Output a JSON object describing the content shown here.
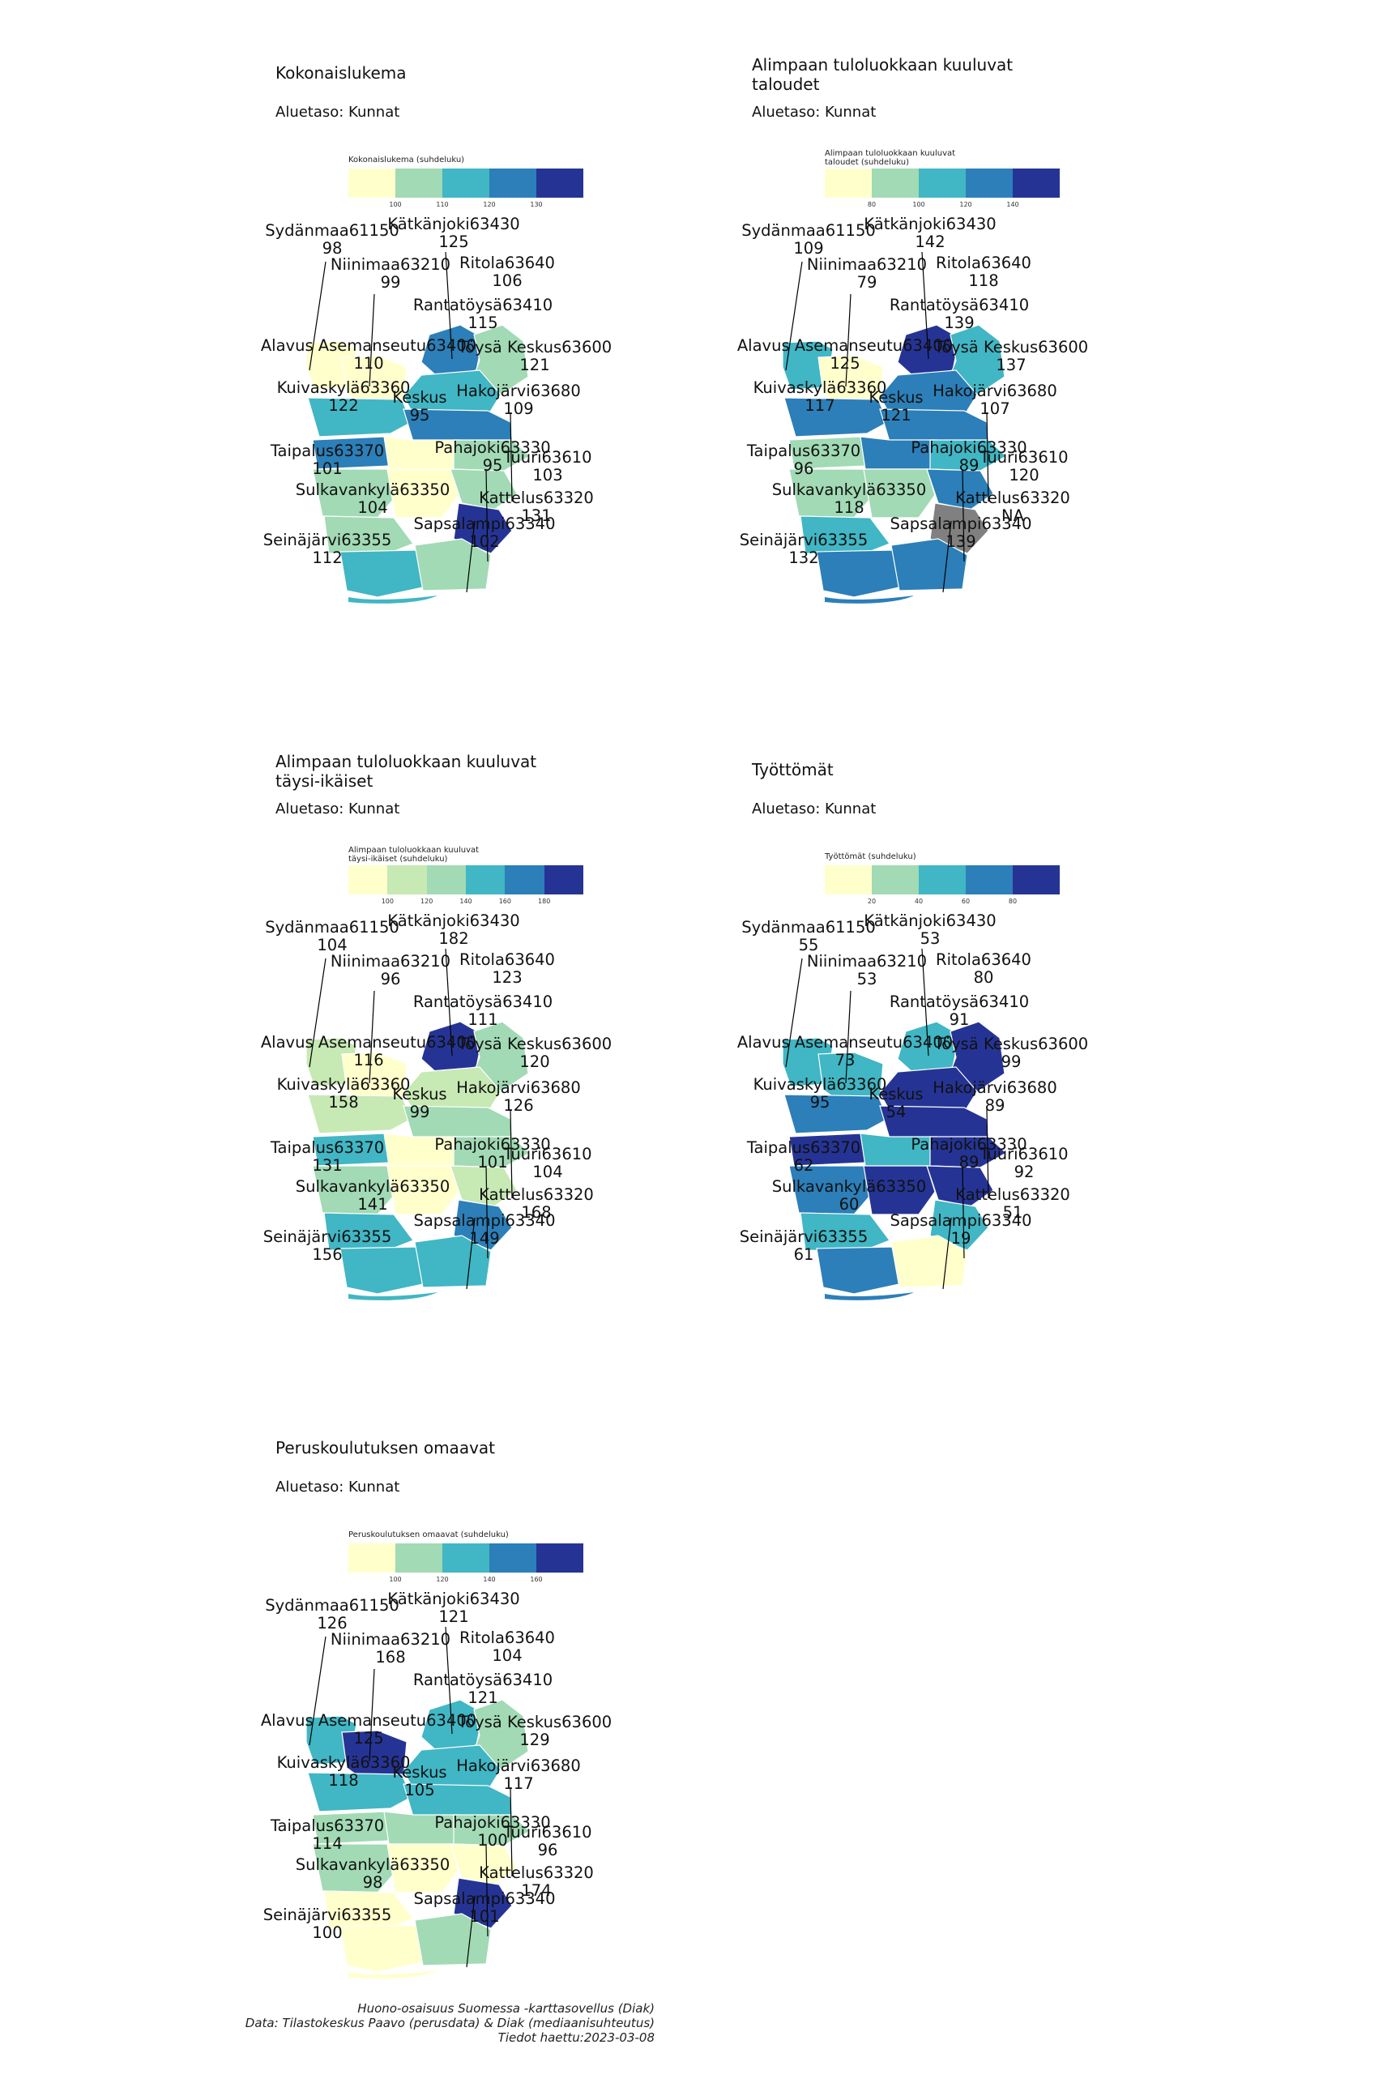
{
  "colors": {
    "c1": "#FFFFCC",
    "c2": "#C7E9B4",
    "c3": "#A1DAB4",
    "c4": "#41B6C4",
    "c5": "#2C7FB8",
    "c6": "#253494",
    "na": "#808080",
    "line": "#000000"
  },
  "panels": [
    {
      "title": "Kokonaislukema",
      "subtitle": "Aluetaso: Kunnat",
      "legend": {
        "title": "Kokonaislukema (suhdeluku)",
        "ticks": [
          "100",
          "110",
          "120",
          "130"
        ],
        "colors": [
          "#FFFFCC",
          "#A1DAB4",
          "#41B6C4",
          "#2C7FB8",
          "#253494"
        ]
      },
      "regions": {
        "sydanmaa": {
          "name": "Sydänmaa61150",
          "value": "98",
          "fill": "#FFFFCC"
        },
        "niinimaa": {
          "name": "Niinimaa63210",
          "value": "99",
          "fill": "#FFFFCC"
        },
        "katkanjoki": {
          "name": "Kätkänjoki63430",
          "value": "125",
          "fill": "#2C7FB8"
        },
        "ritola": {
          "name": "Ritola63640",
          "value": "106",
          "fill": "#A1DAB4"
        },
        "rantatoysa": {
          "name": "Rantatöysä63410",
          "value": "115",
          "fill": "#41B6C4"
        },
        "alavus": {
          "name": "Alavus Asemanseutu63400",
          "value": "110",
          "fill": "#41B6C4"
        },
        "toysa": {
          "name": "Töysä Keskus63600",
          "value": "121",
          "fill": "#2C7FB8"
        },
        "kuivaskyla": {
          "name": "Kuivaskylä63360",
          "value": "122",
          "fill": "#2C7FB8"
        },
        "keskus": {
          "name": "Keskus",
          "value": "95",
          "fill": "#FFFFCC"
        },
        "hakojarvi": {
          "name": "Hakojärvi63680",
          "value": "109",
          "fill": "#A1DAB4"
        },
        "taipalus": {
          "name": "Taipalus63370",
          "value": "101",
          "fill": "#A1DAB4"
        },
        "pahajoki": {
          "name": "Pahajoki63330",
          "value": "95",
          "fill": "#FFFFCC"
        },
        "tuuri": {
          "name": "Tuuri63610",
          "value": "103",
          "fill": "#A1DAB4"
        },
        "sulkavankyla": {
          "name": "Sulkavankylä63350",
          "value": "104",
          "fill": "#A1DAB4"
        },
        "kattelus": {
          "name": "Kattelus63320",
          "value": "131",
          "fill": "#253494"
        },
        "seinajarvi": {
          "name": "Seinäjärvi63355",
          "value": "112",
          "fill": "#41B6C4"
        },
        "sapsalampi": {
          "name": "Sapsalampi63340",
          "value": "102",
          "fill": "#A1DAB4"
        }
      }
    },
    {
      "title": "Alimpaan tuloluokkaan kuuluvat\ntaloudet",
      "subtitle": "Aluetaso: Kunnat",
      "legend": {
        "title": "Alimpaan tuloluokkaan kuuluvat\ntaloudet (suhdeluku)",
        "ticks": [
          "80",
          "100",
          "120",
          "140"
        ],
        "colors": [
          "#FFFFCC",
          "#A1DAB4",
          "#41B6C4",
          "#2C7FB8",
          "#253494"
        ]
      },
      "regions": {
        "sydanmaa": {
          "name": "Sydänmaa61150",
          "value": "109",
          "fill": "#41B6C4"
        },
        "niinimaa": {
          "name": "Niinimaa63210",
          "value": "79",
          "fill": "#FFFFCC"
        },
        "katkanjoki": {
          "name": "Kätkänjoki63430",
          "value": "142",
          "fill": "#253494"
        },
        "ritola": {
          "name": "Ritola63640",
          "value": "118",
          "fill": "#41B6C4"
        },
        "rantatoysa": {
          "name": "Rantatöysä63410",
          "value": "139",
          "fill": "#2C7FB8"
        },
        "alavus": {
          "name": "Alavus Asemanseutu63400",
          "value": "125",
          "fill": "#2C7FB8"
        },
        "toysa": {
          "name": "Töysä Keskus63600",
          "value": "137",
          "fill": "#2C7FB8"
        },
        "kuivaskyla": {
          "name": "Kuivaskylä63360",
          "value": "117",
          "fill": "#A1DAB4"
        },
        "keskus": {
          "name": "Keskus",
          "value": "121",
          "fill": "#2C7FB8"
        },
        "hakojarvi": {
          "name": "Hakojärvi63680",
          "value": "107",
          "fill": "#41B6C4"
        },
        "taipalus": {
          "name": "Taipalus63370",
          "value": "96",
          "fill": "#A1DAB4"
        },
        "pahajoki": {
          "name": "Pahajoki63330",
          "value": "89",
          "fill": "#A1DAB4"
        },
        "tuuri": {
          "name": "Tuuri63610",
          "value": "120",
          "fill": "#2C7FB8"
        },
        "sulkavankyla": {
          "name": "Sulkavankylä63350",
          "value": "118",
          "fill": "#41B6C4"
        },
        "kattelus": {
          "name": "Kattelus63320",
          "value": "NA",
          "fill": "#808080"
        },
        "seinajarvi": {
          "name": "Seinäjärvi63355",
          "value": "132",
          "fill": "#2C7FB8"
        },
        "sapsalampi": {
          "name": "Sapsalampi63340",
          "value": "139",
          "fill": "#2C7FB8"
        }
      }
    },
    {
      "title": "Alimpaan tuloluokkaan kuuluvat\ntäysi-ikäiset",
      "subtitle": "Aluetaso: Kunnat",
      "legend": {
        "title": "Alimpaan tuloluokkaan kuuluvat\ntäysi-ikäiset (suhdeluku)",
        "ticks": [
          "100",
          "120",
          "140",
          "160",
          "180"
        ],
        "colors": [
          "#FFFFCC",
          "#C7E9B4",
          "#A1DAB4",
          "#41B6C4",
          "#2C7FB8",
          "#253494"
        ]
      },
      "regions": {
        "sydanmaa": {
          "name": "Sydänmaa61150",
          "value": "104",
          "fill": "#C7E9B4"
        },
        "niinimaa": {
          "name": "Niinimaa63210",
          "value": "96",
          "fill": "#FFFFCC"
        },
        "katkanjoki": {
          "name": "Kätkänjoki63430",
          "value": "182",
          "fill": "#253494"
        },
        "ritola": {
          "name": "Ritola63640",
          "value": "123",
          "fill": "#A1DAB4"
        },
        "rantatoysa": {
          "name": "Rantatöysä63410",
          "value": "111",
          "fill": "#C7E9B4"
        },
        "alavus": {
          "name": "Alavus Asemanseutu63400",
          "value": "116",
          "fill": "#C7E9B4"
        },
        "toysa": {
          "name": "Töysä Keskus63600",
          "value": "120",
          "fill": "#A1DAB4"
        },
        "kuivaskyla": {
          "name": "Kuivaskylä63360",
          "value": "158",
          "fill": "#41B6C4"
        },
        "keskus": {
          "name": "Keskus",
          "value": "99",
          "fill": "#FFFFCC"
        },
        "hakojarvi": {
          "name": "Hakojärvi63680",
          "value": "126",
          "fill": "#A1DAB4"
        },
        "taipalus": {
          "name": "Taipalus63370",
          "value": "131",
          "fill": "#A1DAB4"
        },
        "pahajoki": {
          "name": "Pahajoki63330",
          "value": "101",
          "fill": "#FFFFCC"
        },
        "tuuri": {
          "name": "Tuuri63610",
          "value": "104",
          "fill": "#C7E9B4"
        },
        "sulkavankyla": {
          "name": "Sulkavankylä63350",
          "value": "141",
          "fill": "#41B6C4"
        },
        "kattelus": {
          "name": "Kattelus63320",
          "value": "168",
          "fill": "#2C7FB8"
        },
        "seinajarvi": {
          "name": "Seinäjärvi63355",
          "value": "156",
          "fill": "#41B6C4"
        },
        "sapsalampi": {
          "name": "Sapsalampi63340",
          "value": "149",
          "fill": "#41B6C4"
        }
      }
    },
    {
      "title": "Työttömät",
      "subtitle": "Aluetaso: Kunnat",
      "legend": {
        "title": "Työttömät (suhdeluku)",
        "ticks": [
          "20",
          "40",
          "60",
          "80"
        ],
        "colors": [
          "#FFFFCC",
          "#A1DAB4",
          "#41B6C4",
          "#2C7FB8",
          "#253494"
        ]
      },
      "regions": {
        "sydanmaa": {
          "name": "Sydänmaa61150",
          "value": "55",
          "fill": "#41B6C4"
        },
        "niinimaa": {
          "name": "Niinimaa63210",
          "value": "53",
          "fill": "#41B6C4"
        },
        "katkanjoki": {
          "name": "Kätkänjoki63430",
          "value": "53",
          "fill": "#41B6C4"
        },
        "ritola": {
          "name": "Ritola63640",
          "value": "80",
          "fill": "#253494"
        },
        "rantatoysa": {
          "name": "Rantatöysä63410",
          "value": "91",
          "fill": "#253494"
        },
        "alavus": {
          "name": "Alavus Asemanseutu63400",
          "value": "73",
          "fill": "#2C7FB8"
        },
        "toysa": {
          "name": "Töysä Keskus63600",
          "value": "99",
          "fill": "#253494"
        },
        "kuivaskyla": {
          "name": "Kuivaskylä63360",
          "value": "95",
          "fill": "#253494"
        },
        "keskus": {
          "name": "Keskus",
          "value": "54",
          "fill": "#41B6C4"
        },
        "hakojarvi": {
          "name": "Hakojärvi63680",
          "value": "89",
          "fill": "#253494"
        },
        "taipalus": {
          "name": "Taipalus63370",
          "value": "62",
          "fill": "#2C7FB8"
        },
        "pahajoki": {
          "name": "Pahajoki63330",
          "value": "89",
          "fill": "#253494"
        },
        "tuuri": {
          "name": "Tuuri63610",
          "value": "92",
          "fill": "#253494"
        },
        "sulkavankyla": {
          "name": "Sulkavankylä63350",
          "value": "60",
          "fill": "#41B6C4"
        },
        "kattelus": {
          "name": "Kattelus63320",
          "value": "51",
          "fill": "#41B6C4"
        },
        "seinajarvi": {
          "name": "Seinäjärvi63355",
          "value": "61",
          "fill": "#2C7FB8"
        },
        "sapsalampi": {
          "name": "Sapsalampi63340",
          "value": "19",
          "fill": "#FFFFCC"
        }
      }
    },
    {
      "title": "Peruskoulutuksen omaavat",
      "subtitle": "Aluetaso: Kunnat",
      "legend": {
        "title": "Peruskoulutuksen omaavat (suhdeluku)",
        "ticks": [
          "100",
          "120",
          "140",
          "160"
        ],
        "colors": [
          "#FFFFCC",
          "#A1DAB4",
          "#41B6C4",
          "#2C7FB8",
          "#253494"
        ]
      },
      "regions": {
        "sydanmaa": {
          "name": "Sydänmaa61150",
          "value": "126",
          "fill": "#41B6C4"
        },
        "niinimaa": {
          "name": "Niinimaa63210",
          "value": "168",
          "fill": "#253494"
        },
        "katkanjoki": {
          "name": "Kätkänjoki63430",
          "value": "121",
          "fill": "#41B6C4"
        },
        "ritola": {
          "name": "Ritola63640",
          "value": "104",
          "fill": "#A1DAB4"
        },
        "rantatoysa": {
          "name": "Rantatöysä63410",
          "value": "121",
          "fill": "#41B6C4"
        },
        "alavus": {
          "name": "Alavus Asemanseutu63400",
          "value": "125",
          "fill": "#41B6C4"
        },
        "toysa": {
          "name": "Töysä Keskus63600",
          "value": "129",
          "fill": "#41B6C4"
        },
        "kuivaskyla": {
          "name": "Kuivaskylä63360",
          "value": "118",
          "fill": "#A1DAB4"
        },
        "keskus": {
          "name": "Keskus",
          "value": "105",
          "fill": "#A1DAB4"
        },
        "hakojarvi": {
          "name": "Hakojärvi63680",
          "value": "117",
          "fill": "#A1DAB4"
        },
        "taipalus": {
          "name": "Taipalus63370",
          "value": "114",
          "fill": "#A1DAB4"
        },
        "pahajoki": {
          "name": "Pahajoki63330",
          "value": "100",
          "fill": "#FFFFCC"
        },
        "tuuri": {
          "name": "Tuuri63610",
          "value": "96",
          "fill": "#FFFFCC"
        },
        "sulkavankyla": {
          "name": "Sulkavankylä63350",
          "value": "98",
          "fill": "#FFFFCC"
        },
        "kattelus": {
          "name": "Kattelus63320",
          "value": "174",
          "fill": "#253494"
        },
        "seinajarvi": {
          "name": "Seinäjärvi63355",
          "value": "100",
          "fill": "#FFFFCC"
        },
        "sapsalampi": {
          "name": "Sapsalampi63340",
          "value": "101",
          "fill": "#A1DAB4"
        }
      }
    }
  ],
  "footer": {
    "line1": "Huono-osaisuus Suomessa -karttasovellus (Diak)",
    "line2": "Data: Tilastokeskus Paavo (perusdata) & Diak (mediaanisuhteutus)",
    "line3": "Tiedot haettu:2023-03-08"
  }
}
